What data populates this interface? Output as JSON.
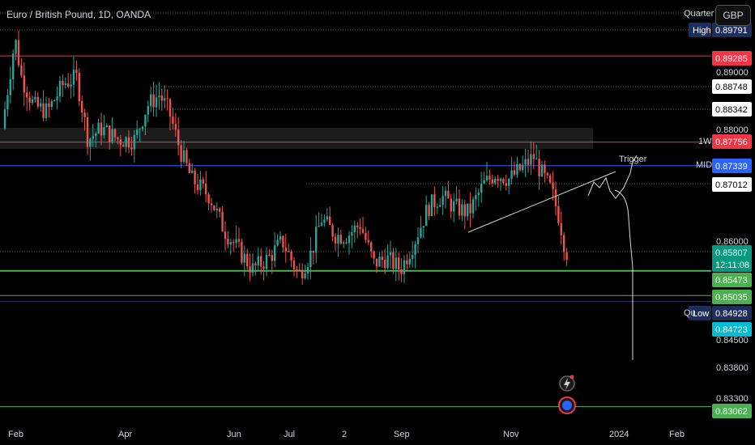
{
  "header": {
    "title": "Euro / British Pound, 1D, OANDA",
    "currency_button": "GBP"
  },
  "labels": {
    "quarter": "Quarter",
    "quarter_short": "Qu",
    "weekly": "1W",
    "mid": "MID",
    "trigger": "Trigger"
  },
  "colors": {
    "up": "#26a69a",
    "down": "#ef5350",
    "red_line": "#f23645",
    "blue_line": "#2962ff",
    "green_line": "#4caf50",
    "grid_dotted": "#888888"
  },
  "chart_data": {
    "type": "candlestick",
    "symbol": "EURGBP",
    "x_ticks": [
      "Feb",
      "Apr",
      "Jun",
      "Jul",
      "2",
      "Sep",
      "Nov",
      "2024",
      "Feb"
    ],
    "price_ticks": [
      "0.89000",
      "0.88000",
      "0.86000",
      "0.84500",
      "0.83800",
      "0.83300"
    ],
    "price_tags": [
      {
        "name": "High",
        "value": "0.89791",
        "style": "navy"
      },
      {
        "name": "",
        "value": "0.89285",
        "style": "red"
      },
      {
        "name": "",
        "value": "0.88748",
        "style": "white"
      },
      {
        "name": "",
        "value": "0.88342",
        "style": "white"
      },
      {
        "name": "1W",
        "value": "0.87756",
        "style": "red"
      },
      {
        "name": "MID",
        "value": "0.87339",
        "style": "blue"
      },
      {
        "name": "",
        "value": "0.87012",
        "style": "white"
      },
      {
        "name": "",
        "value": "0.85807",
        "style": "teal"
      },
      {
        "name": "",
        "value": "12:11:08",
        "style": "teal"
      },
      {
        "name": "",
        "value": "0.85473",
        "style": "green"
      },
      {
        "name": "",
        "value": "0.85035",
        "style": "green"
      },
      {
        "name": "Low",
        "value": "0.84928",
        "style": "navy"
      },
      {
        "name": "",
        "value": "0.84723",
        "style": "cyan"
      },
      {
        "name": "",
        "value": "0.83062",
        "style": "green"
      }
    ],
    "horizontal_levels": [
      {
        "value": 0.89285,
        "style": "red"
      },
      {
        "value": 0.87756,
        "style": "red"
      },
      {
        "value": 0.87339,
        "style": "blue"
      },
      {
        "value": 0.85473,
        "style": "green"
      },
      {
        "value": 0.85035,
        "style": "green"
      },
      {
        "value": 0.84928,
        "style": "navy"
      },
      {
        "value": 0.83062,
        "style": "green"
      }
    ],
    "last_price": 0.85807
  }
}
